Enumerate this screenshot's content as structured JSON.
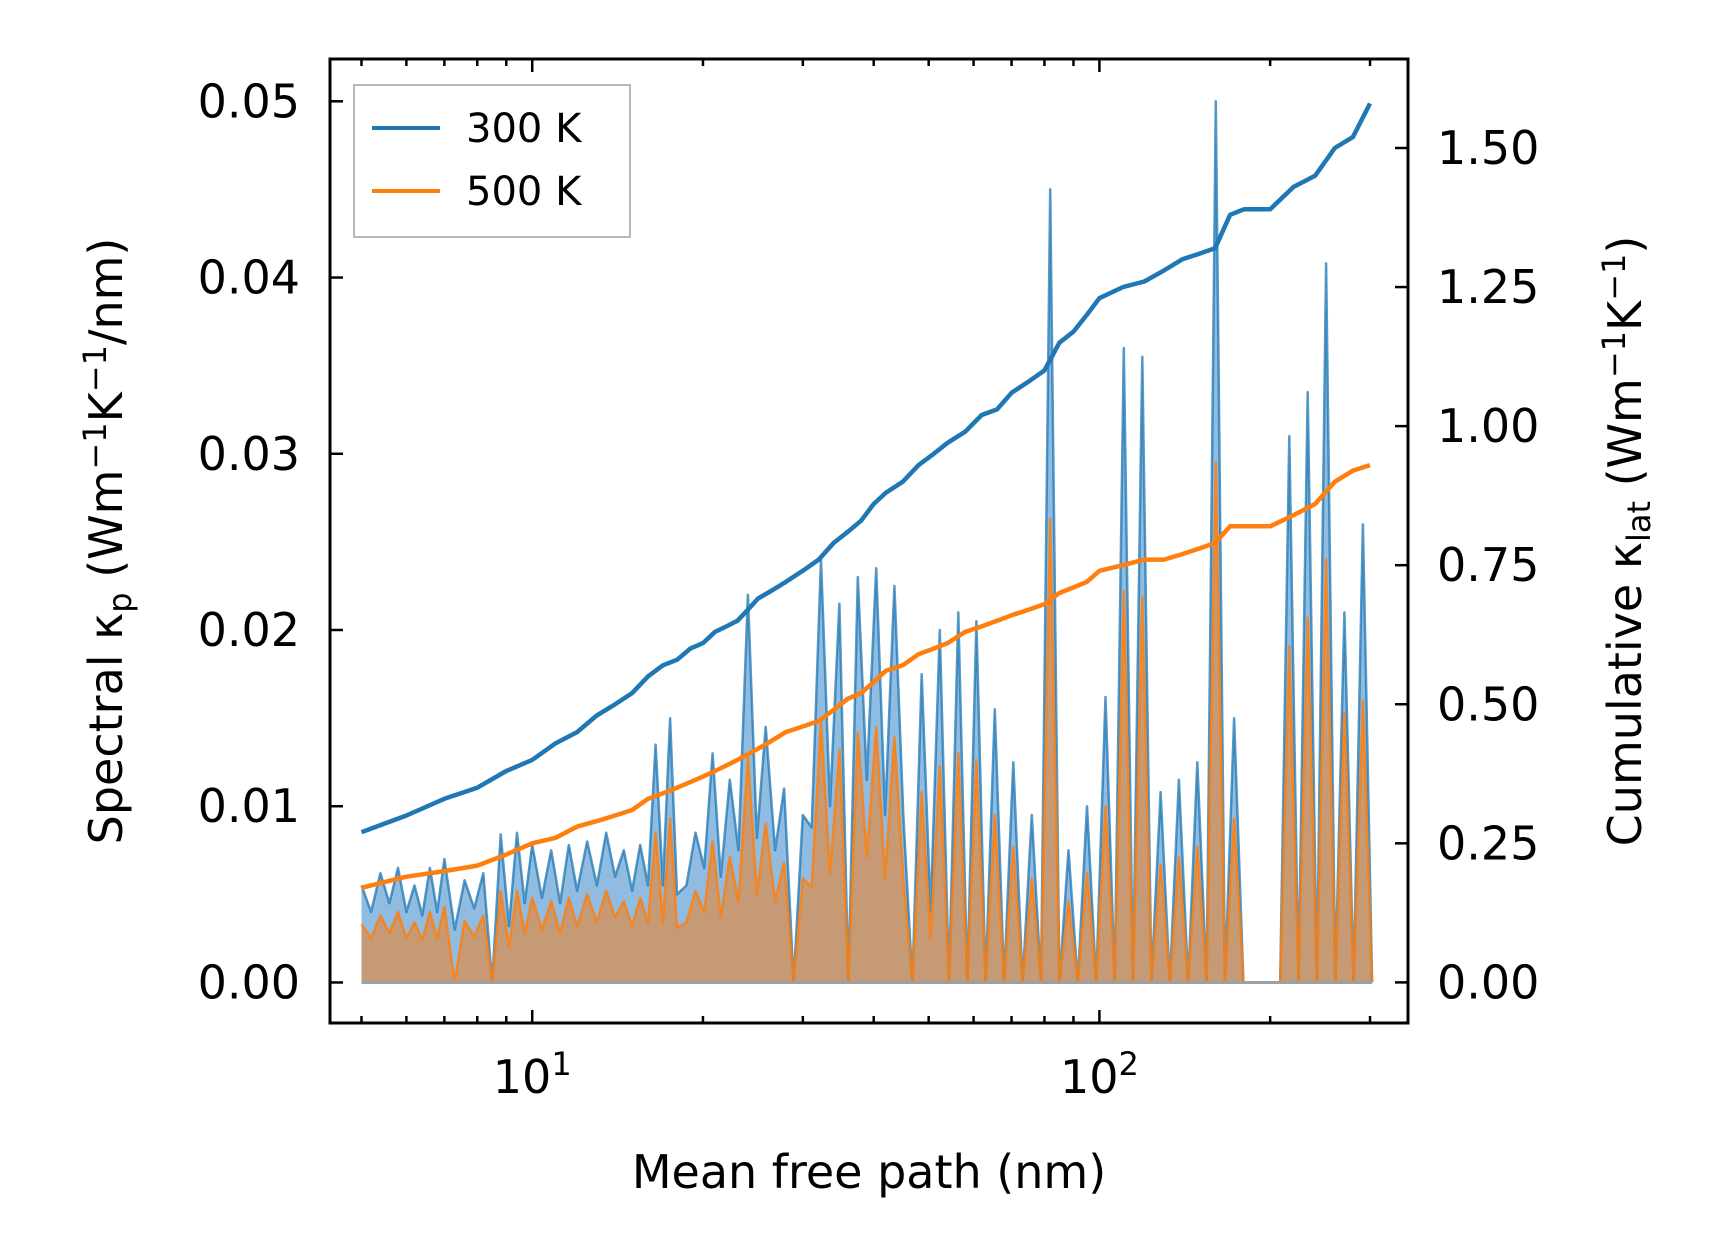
{
  "chart_data": {
    "type": "line",
    "xscale": "log",
    "xlabel": "Mean free path (nm)",
    "ylabel_left": {
      "main": "Spectral κ",
      "sub": "p",
      "units_pre": " (Wm",
      "sup1": "−1",
      "units_mid": "K",
      "sup2": "−1",
      "units_post": "/nm)"
    },
    "ylabel_right": {
      "main": "Cumulative κ",
      "sub": "lat",
      "units_pre": " (Wm",
      "sup1": "−1",
      "units_mid": "K",
      "sup2": "−1",
      "units_post": ")"
    },
    "xlim": [
      4.4,
      350
    ],
    "ylim_left": [
      -0.0023,
      0.0524
    ],
    "ylim_right": [
      -0.073,
      1.66
    ],
    "x_ticks": [
      {
        "value": 10,
        "base": "10",
        "exp": "1"
      },
      {
        "value": 100,
        "base": "10",
        "exp": "2"
      }
    ],
    "y_ticks_left": [
      {
        "value": 0.0,
        "label": "0.00"
      },
      {
        "value": 0.01,
        "label": "0.01"
      },
      {
        "value": 0.02,
        "label": "0.02"
      },
      {
        "value": 0.03,
        "label": "0.03"
      },
      {
        "value": 0.04,
        "label": "0.04"
      },
      {
        "value": 0.05,
        "label": "0.05"
      }
    ],
    "y_ticks_right": [
      {
        "value": 0.0,
        "label": "0.00"
      },
      {
        "value": 0.25,
        "label": "0.25"
      },
      {
        "value": 0.5,
        "label": "0.50"
      },
      {
        "value": 0.75,
        "label": "0.75"
      },
      {
        "value": 1.0,
        "label": "1.00"
      },
      {
        "value": 1.25,
        "label": "1.25"
      },
      {
        "value": 1.5,
        "label": "1.50"
      }
    ],
    "legend": {
      "position": "top-left",
      "entries": [
        "300 K",
        "500 K"
      ]
    },
    "colors": {
      "300K": "#1f77b4",
      "500K": "#ff7f0e",
      "fill300": "#8fbce0",
      "fill500": "#c59a74"
    },
    "spectral_x": [
      5.0,
      5.2,
      5.4,
      5.6,
      5.8,
      6.0,
      6.2,
      6.4,
      6.6,
      6.8,
      7.0,
      7.3,
      7.6,
      7.9,
      8.2,
      8.5,
      8.8,
      9.1,
      9.4,
      9.7,
      10.0,
      10.4,
      10.8,
      11.2,
      11.6,
      12.0,
      12.5,
      13.0,
      13.5,
      14.0,
      14.5,
      15.0,
      15.5,
      16.0,
      16.5,
      17.0,
      17.5,
      18.0,
      18.7,
      19.4,
      20.1,
      20.8,
      21.5,
      22.3,
      23.1,
      24.0,
      24.9,
      25.8,
      26.8,
      27.8,
      28.9,
      30.0,
      31.1,
      32.3,
      33.5,
      34.8,
      36.1,
      37.5,
      38.9,
      40.4,
      41.9,
      43.5,
      45.1,
      46.8,
      48.6,
      50.4,
      52.3,
      54.3,
      56.4,
      58.5,
      60.7,
      63.0,
      65.4,
      67.9,
      70.5,
      73.2,
      76.0,
      78.9,
      81.9,
      85.0,
      88.2,
      91.6,
      95.1,
      98.7,
      102.5,
      106.4,
      110.4,
      114.6,
      119.0,
      123.5,
      128.2,
      133.1,
      138.1,
      143.4,
      148.8,
      154.5,
      160.4,
      166.5,
      172.8,
      179.4,
      186.2,
      193.3,
      200.7,
      208.3,
      216.2,
      224.4,
      232.9,
      241.8,
      251.0,
      260.5,
      270.4,
      280.7,
      291.4,
      302.5
    ],
    "spectral_300K": [
      0.0055,
      0.004,
      0.0062,
      0.0045,
      0.0065,
      0.004,
      0.0055,
      0.0038,
      0.0065,
      0.004,
      0.007,
      0.003,
      0.0058,
      0.0042,
      0.0062,
      0.0,
      0.0084,
      0.0032,
      0.0085,
      0.0045,
      0.0078,
      0.0048,
      0.0075,
      0.0045,
      0.0078,
      0.0052,
      0.008,
      0.0055,
      0.0085,
      0.006,
      0.0075,
      0.0052,
      0.0078,
      0.0055,
      0.0135,
      0.0055,
      0.015,
      0.005,
      0.0055,
      0.0085,
      0.0065,
      0.013,
      0.006,
      0.0115,
      0.0075,
      0.022,
      0.0082,
      0.0145,
      0.0075,
      0.011,
      0.0,
      0.0095,
      0.0088,
      0.024,
      0.01,
      0.0215,
      0.0,
      0.023,
      0.0115,
      0.0235,
      0.0095,
      0.0225,
      0.0095,
      0.0,
      0.0175,
      0.004,
      0.02,
      0.0,
      0.021,
      0.0,
      0.0205,
      0.0,
      0.0155,
      0.0,
      0.0125,
      0.0,
      0.0095,
      0.0,
      0.045,
      0.0,
      0.0075,
      0.0,
      0.01,
      0.0,
      0.0162,
      0.0,
      0.036,
      0.0,
      0.0355,
      0.0,
      0.0108,
      0.0,
      0.0115,
      0.0,
      0.0125,
      0.0,
      0.05,
      0.0,
      0.015,
      0.0,
      0.0,
      0.0,
      0.0,
      0.0,
      0.031,
      0.0,
      0.0335,
      0.0,
      0.0408,
      0.0,
      0.021,
      0.0,
      0.026,
      0.0
    ],
    "spectral_500K": [
      0.0033,
      0.0025,
      0.0038,
      0.0028,
      0.004,
      0.0025,
      0.0034,
      0.0024,
      0.004,
      0.0025,
      0.0043,
      0.0,
      0.0035,
      0.0026,
      0.0038,
      0.0,
      0.0052,
      0.002,
      0.0052,
      0.0028,
      0.0048,
      0.003,
      0.0046,
      0.0028,
      0.0048,
      0.0032,
      0.005,
      0.0034,
      0.0052,
      0.0037,
      0.0046,
      0.0032,
      0.0048,
      0.0034,
      0.0085,
      0.0034,
      0.0093,
      0.0031,
      0.0034,
      0.0052,
      0.004,
      0.008,
      0.0037,
      0.0071,
      0.0046,
      0.0128,
      0.005,
      0.009,
      0.0046,
      0.0068,
      0.0,
      0.0059,
      0.0054,
      0.0148,
      0.0062,
      0.0132,
      0.0,
      0.0142,
      0.0071,
      0.0145,
      0.0059,
      0.0139,
      0.0059,
      0.0,
      0.0108,
      0.0025,
      0.0123,
      0.0,
      0.013,
      0.0,
      0.0126,
      0.0,
      0.0095,
      0.0,
      0.0077,
      0.0,
      0.0059,
      0.0,
      0.0263,
      0.0,
      0.0046,
      0.0,
      0.0062,
      0.0,
      0.01,
      0.0,
      0.0222,
      0.0,
      0.0219,
      0.0,
      0.0067,
      0.0,
      0.0071,
      0.0,
      0.0077,
      0.0,
      0.0295,
      0.0,
      0.0093,
      0.0,
      0.0,
      0.0,
      0.0,
      0.0,
      0.0191,
      0.0,
      0.0207,
      0.0,
      0.024,
      0.0,
      0.0153,
      0.0,
      0.016,
      0.0
    ],
    "cumulative_x": [
      5.0,
      6.0,
      7.0,
      8.0,
      9.0,
      10.0,
      11.0,
      12.0,
      13.0,
      14.0,
      15.0,
      16.0,
      17.0,
      18.0,
      19.0,
      20.0,
      21.0,
      22.0,
      23.0,
      24.0,
      25.0,
      26.0,
      27.0,
      28.0,
      30.0,
      32.0,
      34.0,
      36.0,
      38.0,
      40.0,
      42.0,
      45.0,
      48.0,
      51.0,
      54.0,
      58.0,
      62.0,
      66.0,
      70.0,
      75.0,
      80.0,
      85.0,
      90.0,
      95.0,
      100.0,
      110.0,
      120.0,
      130.0,
      140.0,
      150.0,
      160.0,
      170.0,
      180.0,
      200.0,
      220.0,
      240.0,
      260.0,
      280.0,
      300.0
    ],
    "cumulative_300K": [
      0.27,
      0.3,
      0.33,
      0.35,
      0.38,
      0.4,
      0.43,
      0.45,
      0.48,
      0.5,
      0.52,
      0.55,
      0.57,
      0.58,
      0.6,
      0.61,
      0.63,
      0.64,
      0.65,
      0.67,
      0.69,
      0.7,
      0.71,
      0.72,
      0.74,
      0.76,
      0.79,
      0.81,
      0.83,
      0.86,
      0.88,
      0.9,
      0.93,
      0.95,
      0.97,
      0.99,
      1.02,
      1.03,
      1.06,
      1.08,
      1.1,
      1.15,
      1.17,
      1.2,
      1.23,
      1.25,
      1.26,
      1.28,
      1.3,
      1.31,
      1.32,
      1.38,
      1.39,
      1.39,
      1.43,
      1.45,
      1.5,
      1.52,
      1.58
    ],
    "cumulative_500K": [
      0.17,
      0.19,
      0.2,
      0.21,
      0.23,
      0.25,
      0.26,
      0.28,
      0.29,
      0.3,
      0.31,
      0.33,
      0.34,
      0.35,
      0.36,
      0.37,
      0.38,
      0.39,
      0.4,
      0.41,
      0.42,
      0.43,
      0.44,
      0.45,
      0.46,
      0.47,
      0.49,
      0.51,
      0.52,
      0.54,
      0.56,
      0.57,
      0.59,
      0.6,
      0.61,
      0.63,
      0.64,
      0.65,
      0.66,
      0.67,
      0.68,
      0.7,
      0.71,
      0.72,
      0.74,
      0.75,
      0.76,
      0.76,
      0.77,
      0.78,
      0.79,
      0.82,
      0.82,
      0.82,
      0.84,
      0.86,
      0.9,
      0.92,
      0.93
    ]
  }
}
